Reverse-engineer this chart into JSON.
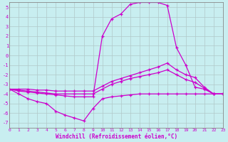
{
  "xlabel": "Windchill (Refroidissement éolien,°C)",
  "background_color": "#c8eef0",
  "grid_color": "#b0c8c8",
  "line_color": "#cc00cc",
  "xlim": [
    0,
    23
  ],
  "ylim": [
    -7.5,
    5.5
  ],
  "xticks": [
    0,
    1,
    2,
    3,
    4,
    5,
    6,
    7,
    8,
    9,
    10,
    11,
    12,
    13,
    14,
    15,
    16,
    17,
    18,
    19,
    20,
    21,
    22,
    23
  ],
  "yticks": [
    -7,
    -6,
    -5,
    -4,
    -3,
    -2,
    -1,
    0,
    1,
    2,
    3,
    4,
    5
  ],
  "curves": [
    {
      "x": [
        0,
        1,
        2,
        3,
        4,
        5,
        6,
        7,
        8,
        9,
        10,
        11,
        12,
        13,
        14,
        15,
        16,
        17,
        18,
        19,
        20,
        21,
        22,
        23
      ],
      "y": [
        -3.5,
        -3.7,
        -3.8,
        -3.9,
        -4.0,
        -4.1,
        -4.2,
        -4.3,
        -4.3,
        -4.3,
        2.0,
        3.8,
        4.3,
        5.3,
        5.5,
        5.5,
        5.5,
        5.2,
        0.8,
        -1.0,
        -3.3,
        -3.5,
        -4.0,
        -4.0
      ]
    },
    {
      "x": [
        0,
        1,
        2,
        3,
        4,
        5,
        6,
        7,
        8,
        9,
        10,
        11,
        12,
        13,
        14,
        15,
        16,
        17,
        18,
        19,
        20,
        21,
        22,
        23
      ],
      "y": [
        -3.5,
        -3.5,
        -3.5,
        -3.6,
        -3.6,
        -3.7,
        -3.7,
        -3.7,
        -3.7,
        -3.7,
        -3.2,
        -2.7,
        -2.4,
        -2.1,
        -1.8,
        -1.5,
        -1.2,
        -0.8,
        -1.5,
        -2.0,
        -2.3,
        -3.3,
        -4.0,
        -4.0
      ]
    },
    {
      "x": [
        0,
        1,
        2,
        3,
        4,
        5,
        6,
        7,
        8,
        9,
        10,
        11,
        12,
        13,
        14,
        15,
        16,
        17,
        18,
        19,
        20,
        21,
        22,
        23
      ],
      "y": [
        -3.5,
        -3.6,
        -3.7,
        -3.8,
        -3.9,
        -4.0,
        -4.0,
        -4.0,
        -4.0,
        -4.0,
        -3.5,
        -3.0,
        -2.7,
        -2.4,
        -2.2,
        -2.0,
        -1.8,
        -1.5,
        -2.0,
        -2.5,
        -2.8,
        -3.4,
        -4.0,
        -4.0
      ]
    },
    {
      "x": [
        0,
        1,
        2,
        3,
        4,
        5,
        6,
        7,
        8,
        9,
        10,
        11,
        12,
        13,
        14,
        15,
        16,
        17,
        18,
        19,
        20,
        21,
        22,
        23
      ],
      "y": [
        -3.5,
        -4.0,
        -4.5,
        -4.8,
        -5.0,
        -5.8,
        -6.2,
        -6.5,
        -6.8,
        -5.5,
        -4.5,
        -4.3,
        -4.2,
        -4.1,
        -4.0,
        -4.0,
        -4.0,
        -4.0,
        -4.0,
        -4.0,
        -4.0,
        -4.0,
        -4.0,
        -4.0
      ]
    }
  ]
}
